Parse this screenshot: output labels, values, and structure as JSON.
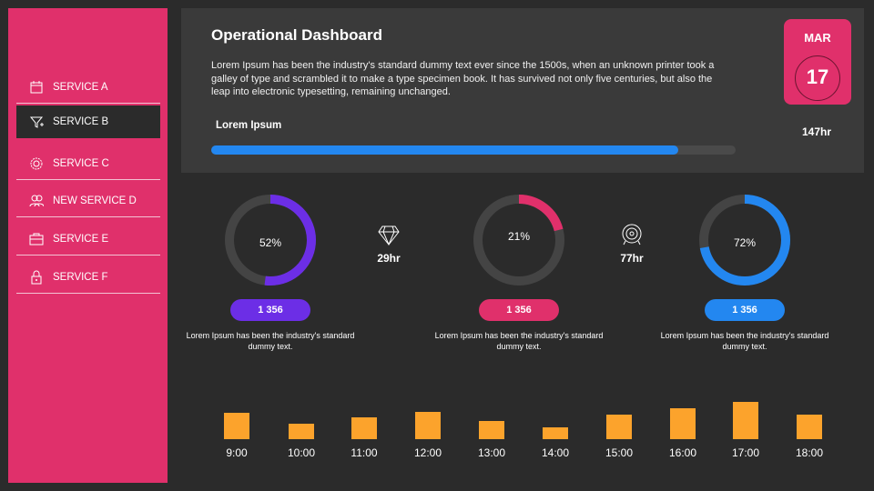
{
  "sidebar": {
    "items": [
      {
        "label": "SERVICE A",
        "icon": "calendar-icon",
        "active": false
      },
      {
        "label": "SERVICE B",
        "icon": "funnel-plus-icon",
        "active": true
      },
      {
        "label": "SERVICE C",
        "icon": "gear-badge-icon",
        "active": false
      },
      {
        "label": "NEW SERVICE D",
        "icon": "users-icon",
        "active": false
      },
      {
        "label": "SERVICE E",
        "icon": "briefcase-icon",
        "active": false
      },
      {
        "label": "SERVICE F",
        "icon": "lock-icon",
        "active": false
      }
    ]
  },
  "header": {
    "title": "Operational Dashboard",
    "description": "Lorem Ipsum has been the industry's standard dummy text ever since the 1500s, when an unknown printer took a galley of type and scrambled it to make a type specimen book. It has survived not only five centuries, but also the leap into electronic typesetting,  remaining unchanged.",
    "progress_label": "Lorem Ipsum",
    "progress_percent": 89,
    "date": {
      "month": "MAR",
      "day": "17"
    },
    "hours": "147hr"
  },
  "colors": {
    "pink": "#e0306b",
    "purple": "#6c2ee6",
    "blue": "#2387f0",
    "orange": "#fca32c"
  },
  "donuts": [
    {
      "percent": 52,
      "label": "52%",
      "color": "#6c2ee6",
      "pill": "1 356",
      "caption": "Lorem Ipsum has been the industry's standard dummy text."
    },
    {
      "percent": 21,
      "label": "21%",
      "color": "#e0306b",
      "pill": "1 356",
      "caption": "Lorem Ipsum has been the industry's standard dummy text."
    },
    {
      "percent": 72,
      "label": "72%",
      "color": "#2387f0",
      "pill": "1 356",
      "caption": "Lorem Ipsum has been the industry's standard dummy text."
    }
  ],
  "metrics": [
    {
      "icon": "diamond-icon",
      "value": "29hr"
    },
    {
      "icon": "target-icon",
      "value": "77hr"
    }
  ],
  "chart_data": {
    "type": "bar",
    "categories": [
      "9:00",
      "10:00",
      "11:00",
      "12:00",
      "13:00",
      "14:00",
      "15:00",
      "16:00",
      "17:00",
      "18:00"
    ],
    "values": [
      29,
      17,
      24,
      30,
      20,
      13,
      27,
      34,
      41,
      27
    ],
    "color": "#fca32c"
  }
}
